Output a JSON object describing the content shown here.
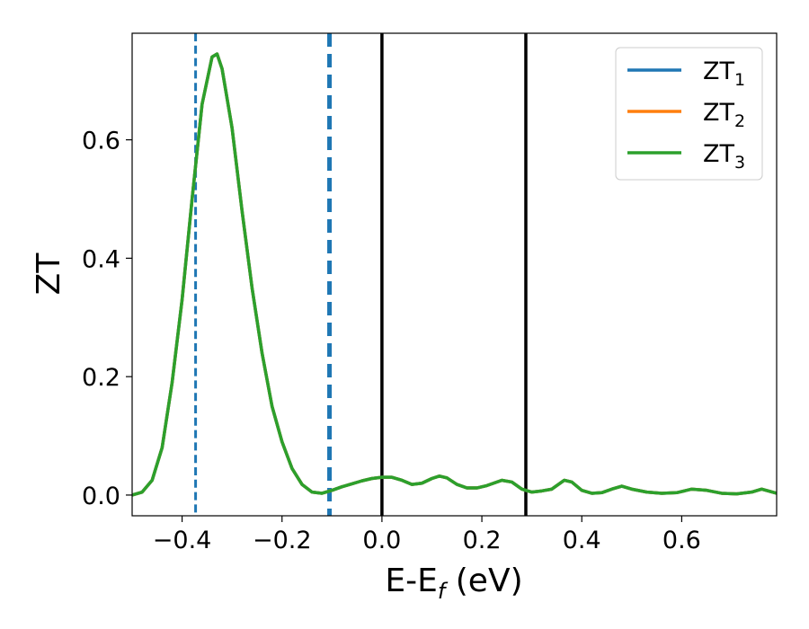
{
  "chart_data": {
    "type": "line",
    "xlabel": "E-E",
    "xlabel_sub": "f",
    "xlabel_unit": " (eV)",
    "ylabel": "ZT",
    "xlim": [
      -0.5,
      0.79
    ],
    "ylim": [
      -0.035,
      0.78
    ],
    "x_ticks": [
      -0.4,
      -0.2,
      0.0,
      0.2,
      0.4,
      0.6
    ],
    "x_tick_labels": [
      "−0.4",
      "−0.2",
      "0.0",
      "0.2",
      "0.4",
      "0.6"
    ],
    "y_ticks": [
      0.0,
      0.2,
      0.4,
      0.6
    ],
    "y_tick_labels": [
      "0.0",
      "0.2",
      "0.4",
      "0.6"
    ],
    "grid": false,
    "legend_placement": "top-right",
    "vlines": [
      {
        "x": -0.373,
        "style": "dashed",
        "color": "#1f77b4",
        "width": 3
      },
      {
        "x": -0.105,
        "style": "dashed",
        "color": "#1f77b4",
        "width": 5
      },
      {
        "x": 0.0,
        "style": "solid",
        "color": "#000000",
        "width": 3.5
      },
      {
        "x": 0.288,
        "style": "solid",
        "color": "#000000",
        "width": 3.5
      }
    ],
    "x": [
      -0.5,
      -0.48,
      -0.46,
      -0.44,
      -0.42,
      -0.4,
      -0.38,
      -0.36,
      -0.34,
      -0.33,
      -0.32,
      -0.3,
      -0.28,
      -0.26,
      -0.24,
      -0.22,
      -0.2,
      -0.18,
      -0.16,
      -0.14,
      -0.12,
      -0.1,
      -0.08,
      -0.06,
      -0.04,
      -0.02,
      0.0,
      0.02,
      0.04,
      0.06,
      0.08,
      0.1,
      0.115,
      0.13,
      0.15,
      0.17,
      0.19,
      0.21,
      0.24,
      0.26,
      0.28,
      0.3,
      0.32,
      0.34,
      0.365,
      0.38,
      0.4,
      0.42,
      0.44,
      0.46,
      0.48,
      0.5,
      0.53,
      0.56,
      0.59,
      0.62,
      0.65,
      0.68,
      0.71,
      0.74,
      0.76,
      0.79
    ],
    "series": [
      {
        "name_base": "ZT",
        "name_sub": "1",
        "color": "#1f77b4",
        "values": [
          0.0,
          0.005,
          0.025,
          0.08,
          0.19,
          0.33,
          0.5,
          0.66,
          0.74,
          0.745,
          0.72,
          0.62,
          0.48,
          0.35,
          0.24,
          0.15,
          0.09,
          0.045,
          0.018,
          0.005,
          0.003,
          0.008,
          0.014,
          0.019,
          0.024,
          0.028,
          0.03,
          0.03,
          0.025,
          0.018,
          0.02,
          0.028,
          0.032,
          0.029,
          0.018,
          0.012,
          0.012,
          0.016,
          0.025,
          0.022,
          0.01,
          0.005,
          0.007,
          0.01,
          0.025,
          0.022,
          0.008,
          0.003,
          0.004,
          0.01,
          0.015,
          0.01,
          0.005,
          0.003,
          0.004,
          0.01,
          0.008,
          0.003,
          0.002,
          0.005,
          0.01,
          0.003
        ]
      },
      {
        "name_base": "ZT",
        "name_sub": "2",
        "color": "#ff7f0e",
        "values": [
          0.0,
          0.005,
          0.025,
          0.08,
          0.19,
          0.33,
          0.5,
          0.66,
          0.74,
          0.745,
          0.72,
          0.62,
          0.48,
          0.35,
          0.24,
          0.15,
          0.09,
          0.045,
          0.018,
          0.005,
          0.003,
          0.008,
          0.014,
          0.019,
          0.024,
          0.028,
          0.03,
          0.03,
          0.025,
          0.018,
          0.02,
          0.028,
          0.032,
          0.029,
          0.018,
          0.012,
          0.012,
          0.016,
          0.025,
          0.022,
          0.01,
          0.005,
          0.007,
          0.01,
          0.025,
          0.022,
          0.008,
          0.003,
          0.004,
          0.01,
          0.015,
          0.01,
          0.005,
          0.003,
          0.004,
          0.01,
          0.008,
          0.003,
          0.002,
          0.005,
          0.01,
          0.003
        ]
      },
      {
        "name_base": "ZT",
        "name_sub": "3",
        "color": "#2ca02c",
        "values": [
          0.0,
          0.005,
          0.025,
          0.08,
          0.19,
          0.33,
          0.5,
          0.66,
          0.74,
          0.745,
          0.72,
          0.62,
          0.48,
          0.35,
          0.24,
          0.15,
          0.09,
          0.045,
          0.018,
          0.005,
          0.003,
          0.008,
          0.014,
          0.019,
          0.024,
          0.028,
          0.03,
          0.03,
          0.025,
          0.018,
          0.02,
          0.028,
          0.032,
          0.029,
          0.018,
          0.012,
          0.012,
          0.016,
          0.025,
          0.022,
          0.01,
          0.005,
          0.007,
          0.01,
          0.025,
          0.022,
          0.008,
          0.003,
          0.004,
          0.01,
          0.015,
          0.01,
          0.005,
          0.003,
          0.004,
          0.01,
          0.008,
          0.003,
          0.002,
          0.005,
          0.01,
          0.003
        ]
      }
    ]
  }
}
